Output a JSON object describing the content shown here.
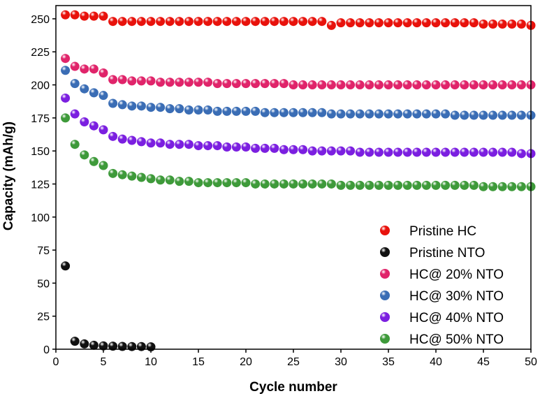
{
  "chart_data": {
    "type": "scatter",
    "title": "",
    "xlabel": "Cycle number",
    "ylabel": "Capacity (mAh/g)",
    "xlim": [
      0,
      50
    ],
    "ylim": [
      0,
      260
    ],
    "xticks": [
      0,
      5,
      10,
      15,
      20,
      25,
      30,
      35,
      40,
      45,
      50
    ],
    "yticks": [
      0,
      25,
      50,
      75,
      100,
      125,
      150,
      175,
      200,
      225,
      250
    ],
    "grid": false,
    "legend_position": "bottom-right",
    "series": [
      {
        "name": "Pristine HC",
        "color": "#e8120c",
        "x": [
          1,
          2,
          3,
          4,
          5,
          6,
          7,
          8,
          9,
          10,
          11,
          12,
          13,
          14,
          15,
          16,
          17,
          18,
          19,
          20,
          21,
          22,
          23,
          24,
          25,
          26,
          27,
          28,
          29,
          30,
          31,
          32,
          33,
          34,
          35,
          36,
          37,
          38,
          39,
          40,
          41,
          42,
          43,
          44,
          45,
          46,
          47,
          48,
          49,
          50
        ],
        "y": [
          253,
          253,
          252,
          252,
          252,
          248,
          248,
          248,
          248,
          248,
          248,
          248,
          248,
          248,
          248,
          248,
          248,
          248,
          248,
          248,
          248,
          248,
          248,
          248,
          248,
          248,
          248,
          248,
          245,
          247,
          247,
          247,
          247,
          247,
          247,
          247,
          247,
          247,
          247,
          247,
          247,
          247,
          247,
          247,
          246,
          246,
          246,
          246,
          246,
          245
        ]
      },
      {
        "name": "Pristine NTO",
        "color": "#111111",
        "x": [
          1,
          2,
          3,
          4,
          5,
          6,
          7,
          8,
          9,
          10
        ],
        "y": [
          63,
          6,
          4,
          3,
          2.5,
          2.3,
          2.1,
          2,
          2,
          1.8
        ]
      },
      {
        "name": "HC@ 20% NTO",
        "color": "#e0246a",
        "x": [
          1,
          2,
          3,
          4,
          5,
          6,
          7,
          8,
          9,
          10,
          11,
          12,
          13,
          14,
          15,
          16,
          17,
          18,
          19,
          20,
          21,
          22,
          23,
          24,
          25,
          26,
          27,
          28,
          29,
          30,
          31,
          32,
          33,
          34,
          35,
          36,
          37,
          38,
          39,
          40,
          41,
          42,
          43,
          44,
          45,
          46,
          47,
          48,
          49,
          50
        ],
        "y": [
          220,
          214,
          212,
          212,
          209,
          204,
          204,
          203,
          203,
          203,
          202,
          202,
          202,
          202,
          202,
          202,
          201,
          201,
          201,
          201,
          201,
          201,
          201,
          201,
          200,
          200,
          200,
          200,
          200,
          200,
          200,
          200,
          200,
          200,
          200,
          200,
          200,
          200,
          200,
          200,
          200,
          200,
          200,
          200,
          200,
          200,
          200,
          200,
          200,
          200
        ]
      },
      {
        "name": "HC@ 30% NTO",
        "color": "#3a6db5",
        "x": [
          1,
          2,
          3,
          4,
          5,
          6,
          7,
          8,
          9,
          10,
          11,
          12,
          13,
          14,
          15,
          16,
          17,
          18,
          19,
          20,
          21,
          22,
          23,
          24,
          25,
          26,
          27,
          28,
          29,
          30,
          31,
          32,
          33,
          34,
          35,
          36,
          37,
          38,
          39,
          40,
          41,
          42,
          43,
          44,
          45,
          46,
          47,
          48,
          49,
          50
        ],
        "y": [
          211,
          201,
          197,
          194,
          192,
          186,
          185,
          184,
          184,
          183,
          183,
          182,
          182,
          181,
          181,
          181,
          180,
          180,
          180,
          180,
          180,
          179,
          179,
          179,
          179,
          179,
          179,
          179,
          178,
          178,
          178,
          178,
          178,
          178,
          178,
          178,
          178,
          178,
          178,
          178,
          178,
          177,
          177,
          177,
          177,
          177,
          177,
          177,
          177,
          177
        ]
      },
      {
        "name": "HC@ 40% NTO",
        "color": "#7b1fe0",
        "x": [
          1,
          2,
          3,
          4,
          5,
          6,
          7,
          8,
          9,
          10,
          11,
          12,
          13,
          14,
          15,
          16,
          17,
          18,
          19,
          20,
          21,
          22,
          23,
          24,
          25,
          26,
          27,
          28,
          29,
          30,
          31,
          32,
          33,
          34,
          35,
          36,
          37,
          38,
          39,
          40,
          41,
          42,
          43,
          44,
          45,
          46,
          47,
          48,
          49,
          50
        ],
        "y": [
          190,
          178,
          172,
          169,
          166,
          161,
          159,
          158,
          157,
          156,
          156,
          155,
          155,
          155,
          154,
          154,
          154,
          153,
          153,
          153,
          152,
          152,
          152,
          151,
          151,
          151,
          150,
          150,
          150,
          150,
          150,
          149,
          149,
          149,
          149,
          149,
          149,
          149,
          149,
          149,
          149,
          149,
          149,
          149,
          149,
          149,
          149,
          149,
          148,
          148
        ]
      },
      {
        "name": "HC@ 50% NTO",
        "color": "#3e9a3a",
        "x": [
          1,
          2,
          3,
          4,
          5,
          6,
          7,
          8,
          9,
          10,
          11,
          12,
          13,
          14,
          15,
          16,
          17,
          18,
          19,
          20,
          21,
          22,
          23,
          24,
          25,
          26,
          27,
          28,
          29,
          30,
          31,
          32,
          33,
          34,
          35,
          36,
          37,
          38,
          39,
          40,
          41,
          42,
          43,
          44,
          45,
          46,
          47,
          48,
          49,
          50
        ],
        "y": [
          175,
          155,
          147,
          142,
          139,
          133,
          132,
          131,
          130,
          129,
          128,
          128,
          127,
          127,
          126,
          126,
          126,
          126,
          126,
          126,
          125,
          125,
          125,
          125,
          125,
          125,
          125,
          125,
          125,
          124,
          124,
          124,
          124,
          124,
          124,
          124,
          124,
          124,
          124,
          124,
          124,
          124,
          124,
          124,
          123,
          123,
          123,
          123,
          123,
          123
        ]
      }
    ]
  }
}
